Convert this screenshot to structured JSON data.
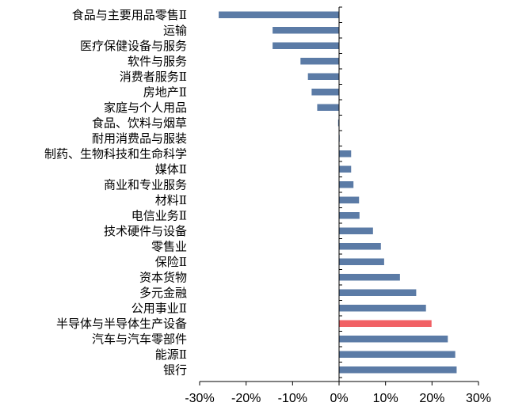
{
  "chart_data": {
    "type": "bar",
    "orientation": "horizontal",
    "title": "",
    "xlabel": "",
    "ylabel": "",
    "xlim": [
      -30,
      30
    ],
    "x_ticks": [
      -30,
      -20,
      -10,
      0,
      10,
      20,
      30
    ],
    "x_tick_labels": [
      "-30%",
      "-20%",
      "-10%",
      "0%",
      "10%",
      "20%",
      "30%"
    ],
    "grid": false,
    "legend": "none",
    "categories": [
      "食品与主要用品零售Ⅱ",
      "运输",
      "医疗保健设备与服务",
      "软件与服务",
      "消费者服务Ⅱ",
      "房地产Ⅱ",
      "家庭与个人用品",
      "食品、饮料与烟草",
      "耐用消费品与服装",
      "制药、生物科技和生命科学",
      "媒体Ⅱ",
      "商业和专业服务",
      "材料Ⅱ",
      "电信业务Ⅱ",
      "技术硬件与设备",
      "零售业",
      "保险Ⅱ",
      "资本货物",
      "多元金融",
      "公用事业Ⅱ",
      "半导体与半导体生产设备",
      "汽车与汽车零部件",
      "能源Ⅱ",
      "银行"
    ],
    "values": [
      -25.9,
      -14.3,
      -14.3,
      -8.3,
      -6.7,
      -5.9,
      -4.7,
      -0.2,
      0.0,
      2.6,
      2.6,
      3.1,
      4.3,
      4.4,
      7.3,
      9.0,
      9.7,
      13.1,
      16.6,
      18.7,
      19.9,
      23.4,
      25.0,
      25.3
    ],
    "highlight_index": 20,
    "colors": {
      "bar": "#5B7BA6",
      "highlight": "#F16165",
      "axis": "#000000"
    }
  }
}
